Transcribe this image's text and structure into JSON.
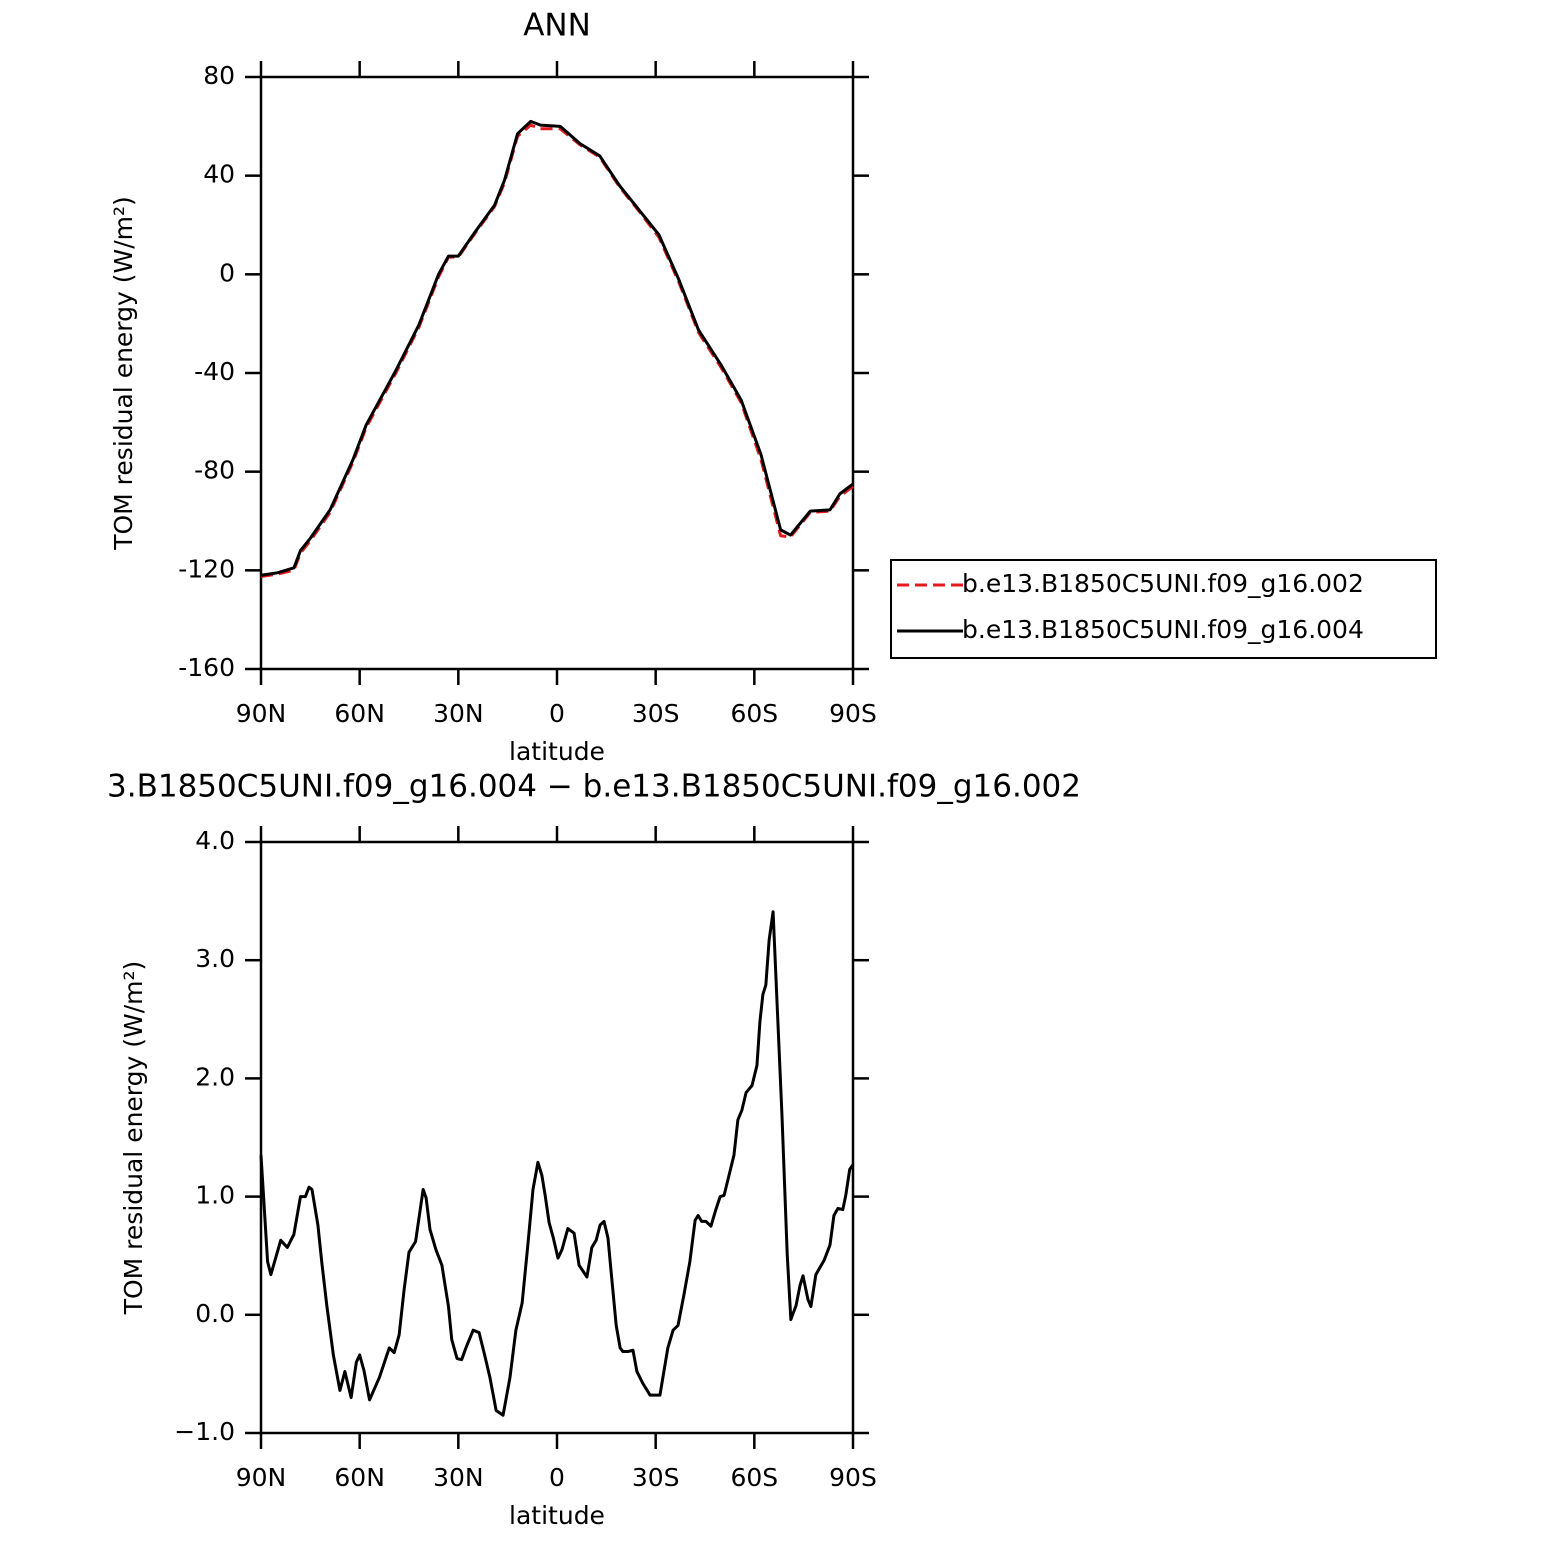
{
  "chart_data": [
    {
      "type": "line",
      "title": "ANN",
      "x_label": "latitude",
      "y_label": "TOM residual energy (W/m²)",
      "x": [
        90,
        85,
        80,
        78,
        75,
        69,
        62,
        58,
        49,
        42,
        36,
        33,
        30,
        25,
        19,
        16,
        12,
        8,
        5,
        -1,
        -7,
        -13,
        -19,
        -25,
        -31,
        -37,
        -43,
        -50,
        -56,
        -62,
        -68,
        -71,
        -77,
        -83,
        -86,
        -90
      ],
      "xlim": [
        90,
        -90
      ],
      "xticks": [
        {
          "value": 90,
          "label": "90N"
        },
        {
          "value": 60,
          "label": "60N"
        },
        {
          "value": 30,
          "label": "30N"
        },
        0,
        {
          "value": -30,
          "label": "30S"
        },
        {
          "value": -60,
          "label": "60S"
        },
        {
          "value": -90,
          "label": "90S"
        }
      ],
      "ylim": [
        -160,
        80
      ],
      "yticks": [
        -160,
        -120,
        -80,
        -40,
        0,
        40,
        80
      ],
      "legend": "right",
      "series": [
        {
          "name": "b.e13.B1850C5UNI.f09_g16.002",
          "color": "#e41a1c",
          "style": "dashed",
          "values": [
            -122.5,
            -121.5,
            -120,
            -113,
            -108,
            -96.5,
            -76,
            -62,
            -40,
            -21.5,
            -1,
            7,
            7,
            16.5,
            27.5,
            37,
            56,
            60.5,
            59,
            59,
            52.5,
            47.5,
            35.5,
            25.5,
            15,
            -3,
            -23.5,
            -38,
            -52,
            -75,
            -106,
            -106.5,
            -96.5,
            -96,
            -90,
            -86
          ]
        },
        {
          "name": "b.e13.B1850C5UNI.f09_g16.004",
          "color": "#000000",
          "style": "solid",
          "values": [
            -122,
            -121,
            -119,
            -112,
            -107,
            -95.5,
            -75,
            -61,
            -39,
            -20.5,
            0,
            7.4,
            7.4,
            17,
            28,
            38,
            57,
            62,
            60.5,
            60,
            53,
            48,
            36,
            26,
            16,
            -2,
            -22.5,
            -37,
            -51,
            -73,
            -103.6,
            -105.7,
            -96,
            -95.5,
            -89,
            -85
          ]
        }
      ]
    },
    {
      "type": "line",
      "title": "3.B1850C5UNI.f09_g16.004 − b.e13.B1850C5UNI.f09_g16.002",
      "x_label": "latitude",
      "y_label": "TOM residual energy (W/m²)",
      "x": [
        90,
        88,
        87,
        84,
        82,
        80,
        79,
        78,
        76.5,
        75.4,
        74.5,
        72.7,
        71.5,
        70,
        68,
        66,
        64.5,
        62.6,
        61,
        60,
        58.7,
        57,
        54,
        51,
        49.5,
        48,
        46.5,
        45,
        43,
        40.7,
        39.8,
        38.6,
        36.8,
        35,
        33,
        32,
        30.4,
        29,
        27.7,
        25.5,
        23.7,
        22,
        20.4,
        18.5,
        16.4,
        14.3,
        12.5,
        10.6,
        8.8,
        7.3,
        5.8,
        4.6,
        3.6,
        2.4,
        1.2,
        -0.3,
        -1.5,
        -3.3,
        -5.2,
        -6.7,
        -9.1,
        -10.6,
        -11.9,
        -13.1,
        -14.3,
        -15.5,
        -16.4,
        -18,
        -19.2,
        -20,
        -21.7,
        -23.1,
        -24.3,
        -26.1,
        -28.3,
        -29.8,
        -31.3,
        -32.5,
        -33.7,
        -35.3,
        -36.8,
        -38.6,
        -40.4,
        -42,
        -42.9,
        -44,
        -45.3,
        -46.8,
        -48.3,
        -49.6,
        -50.8,
        -52.3,
        -53.8,
        -55,
        -56.2,
        -57.5,
        -59.3,
        -60.8,
        -61.7,
        -62.6,
        -63.5,
        -64.5,
        -65.7,
        -68.4,
        -70,
        -71.1,
        -72.7,
        -73.9,
        -74.8,
        -76.3,
        -77.2,
        -78.7,
        -81.2,
        -83,
        -84.2,
        -85.4,
        -86.9,
        -87.8,
        -89,
        -90
      ],
      "xlim": [
        90,
        -90
      ],
      "xticks": [
        {
          "value": 90,
          "label": "90N"
        },
        {
          "value": 60,
          "label": "60N"
        },
        {
          "value": 30,
          "label": "30N"
        },
        0,
        {
          "value": -30,
          "label": "30S"
        },
        {
          "value": -60,
          "label": "60S"
        },
        {
          "value": -90,
          "label": "90S"
        }
      ],
      "ylim": [
        -1,
        4
      ],
      "yticks": [
        {
          "value": -1,
          "label": "−1.0"
        },
        {
          "value": 0,
          "label": "0.0"
        },
        {
          "value": 1,
          "label": "1.0"
        },
        {
          "value": 2,
          "label": "2.0"
        },
        {
          "value": 3,
          "label": "3.0"
        },
        {
          "value": 4,
          "label": "4.0"
        }
      ],
      "series": [
        {
          "color": "#000000",
          "style": "solid",
          "values": [
            1.35,
            0.45,
            0.34,
            0.63,
            0.57,
            0.68,
            0.84,
            1.0,
            1.0,
            1.08,
            1.06,
            0.76,
            0.44,
            0.08,
            -0.34,
            -0.64,
            -0.48,
            -0.7,
            -0.4,
            -0.34,
            -0.47,
            -0.72,
            -0.53,
            -0.28,
            -0.32,
            -0.17,
            0.21,
            0.53,
            0.62,
            1.06,
            0.99,
            0.72,
            0.55,
            0.42,
            0.07,
            -0.21,
            -0.37,
            -0.38,
            -0.28,
            -0.13,
            -0.15,
            -0.34,
            -0.53,
            -0.81,
            -0.85,
            -0.53,
            -0.13,
            0.1,
            0.61,
            1.06,
            1.29,
            1.18,
            1.01,
            0.78,
            0.66,
            0.48,
            0.55,
            0.73,
            0.69,
            0.42,
            0.32,
            0.57,
            0.63,
            0.76,
            0.79,
            0.65,
            0.38,
            -0.09,
            -0.28,
            -0.31,
            -0.31,
            -0.3,
            -0.48,
            -0.58,
            -0.68,
            -0.68,
            -0.68,
            -0.48,
            -0.28,
            -0.13,
            -0.09,
            0.17,
            0.45,
            0.8,
            0.84,
            0.79,
            0.79,
            0.75,
            0.89,
            1.0,
            1.01,
            1.18,
            1.35,
            1.65,
            1.73,
            1.88,
            1.94,
            2.11,
            2.48,
            2.71,
            2.79,
            3.17,
            3.41,
            1.69,
            0.51,
            -0.04,
            0.08,
            0.25,
            0.33,
            0.13,
            0.07,
            0.34,
            0.46,
            0.59,
            0.84,
            0.9,
            0.89,
            1.01,
            1.23,
            1.27
          ]
        }
      ]
    }
  ]
}
